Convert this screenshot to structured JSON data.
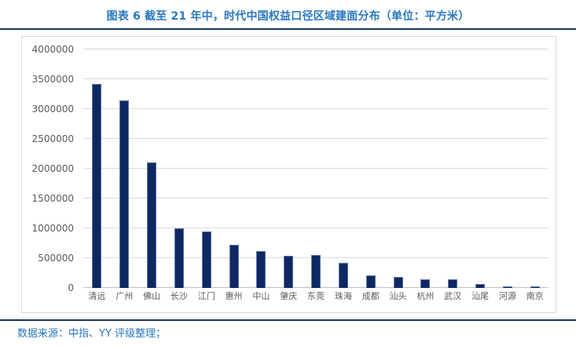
{
  "title": "图表 6 截至 21 年中，时代中国权益口径区域建面分布（单位：平方米）",
  "source_note": "数据来源：中指、YY 评级整理；",
  "colors": {
    "accent": "#2878BE",
    "rule": "#17375E",
    "bar_fill": "#0E2862",
    "bar_edge": "#5C74A8",
    "grid": "#D9D9D9",
    "zero_line": "#BFBFBF",
    "axis_text": "#595959"
  },
  "chart_data": {
    "type": "bar",
    "title": "图表 6 截至 21 年中，时代中国权益口径区域建面分布（单位：平方米）",
    "categories": [
      "清远",
      "广州",
      "佛山",
      "长沙",
      "江门",
      "惠州",
      "中山",
      "肇庆",
      "东莞",
      "珠海",
      "成都",
      "汕头",
      "杭州",
      "武汉",
      "汕尾",
      "河源",
      "南京"
    ],
    "values": [
      3420000,
      3150000,
      2100000,
      1000000,
      945000,
      720000,
      620000,
      545000,
      555000,
      425000,
      210000,
      185000,
      150000,
      145000,
      65000,
      30000,
      20000
    ],
    "xlabel": "",
    "ylabel": "",
    "ylim": [
      0,
      4000000
    ],
    "ytick_values": [
      0,
      500000,
      1000000,
      1500000,
      2000000,
      2500000,
      3000000,
      3500000,
      4000000
    ],
    "ytick_labels": [
      "0",
      "500000",
      "1000000",
      "1500000",
      "2000000",
      "2500000",
      "3000000",
      "3500000",
      "4000000"
    ],
    "grid": true,
    "legend": false,
    "bar_color": "#0E2862"
  }
}
